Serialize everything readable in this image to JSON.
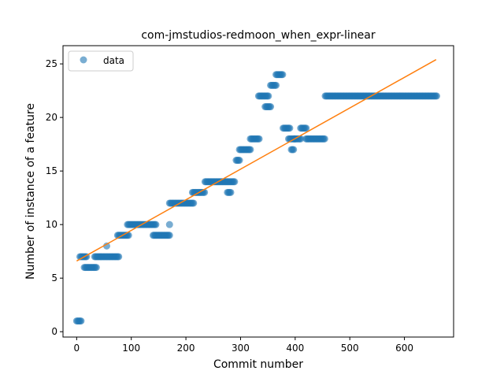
{
  "chart_data": {
    "type": "scatter",
    "title": "com-jmstudios-redmoon_when_expr-linear",
    "xlabel": "Commit number",
    "ylabel": "Number of instance of a feature",
    "xlim": [
      -25,
      690
    ],
    "ylim": [
      -0.5,
      26.7
    ],
    "xticks": [
      0,
      100,
      200,
      300,
      400,
      500,
      600
    ],
    "yticks": [
      0,
      5,
      10,
      15,
      20,
      25
    ],
    "grid": false,
    "legend_position": "top-left",
    "colors": {
      "data": "#1f77b4",
      "fit": "#ff7f0e"
    },
    "series": [
      {
        "name": "data",
        "style": "markers",
        "segments": [
          {
            "x_start": 0,
            "x_end": 8,
            "y": 1
          },
          {
            "x_start": 6,
            "x_end": 18,
            "y": 7
          },
          {
            "x_start": 14,
            "x_end": 36,
            "y": 6
          },
          {
            "x_start": 33,
            "x_end": 77,
            "y": 7
          },
          {
            "x_start": 55,
            "x_end": 55,
            "y": 8
          },
          {
            "x_start": 75,
            "x_end": 95,
            "y": 9
          },
          {
            "x_start": 93,
            "x_end": 145,
            "y": 10
          },
          {
            "x_start": 140,
            "x_end": 170,
            "y": 9
          },
          {
            "x_start": 170,
            "x_end": 170,
            "y": 10
          },
          {
            "x_start": 170,
            "x_end": 215,
            "y": 12
          },
          {
            "x_start": 212,
            "x_end": 235,
            "y": 13
          },
          {
            "x_start": 235,
            "x_end": 290,
            "y": 14
          },
          {
            "x_start": 276,
            "x_end": 282,
            "y": 13
          },
          {
            "x_start": 292,
            "x_end": 298,
            "y": 16
          },
          {
            "x_start": 298,
            "x_end": 318,
            "y": 17
          },
          {
            "x_start": 318,
            "x_end": 335,
            "y": 18
          },
          {
            "x_start": 333,
            "x_end": 352,
            "y": 22
          },
          {
            "x_start": 345,
            "x_end": 355,
            "y": 21
          },
          {
            "x_start": 355,
            "x_end": 365,
            "y": 23
          },
          {
            "x_start": 365,
            "x_end": 378,
            "y": 24
          },
          {
            "x_start": 378,
            "x_end": 390,
            "y": 19
          },
          {
            "x_start": 388,
            "x_end": 400,
            "y": 18
          },
          {
            "x_start": 393,
            "x_end": 398,
            "y": 17
          },
          {
            "x_start": 398,
            "x_end": 410,
            "y": 18
          },
          {
            "x_start": 410,
            "x_end": 420,
            "y": 19
          },
          {
            "x_start": 420,
            "x_end": 455,
            "y": 18
          },
          {
            "x_start": 455,
            "x_end": 660,
            "y": 22
          }
        ]
      },
      {
        "name": "",
        "style": "line",
        "x": [
          0,
          658
        ],
        "y": [
          6.6,
          25.4
        ]
      }
    ]
  }
}
